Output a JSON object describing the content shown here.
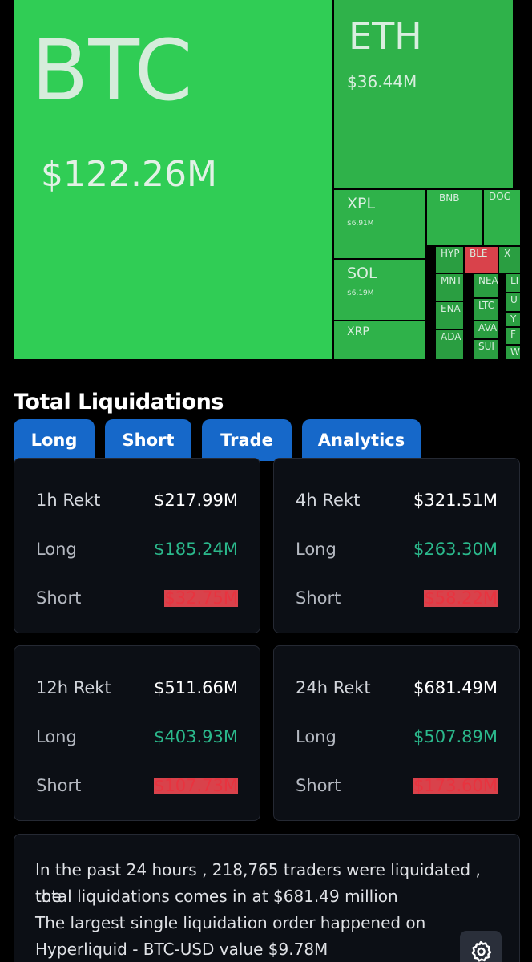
{
  "treemap": {
    "btc": {
      "symbol": "BTC",
      "value": "$122.26M"
    },
    "eth": {
      "symbol": "ETH",
      "value": "$36.44M"
    },
    "xpl": {
      "symbol": "XPL",
      "value": "$6.91M"
    },
    "sol": {
      "symbol": "SOL",
      "value": "$6.19M"
    },
    "xrp": {
      "symbol": "XRP"
    },
    "bnb": {
      "symbol": "BNB"
    },
    "doge": {
      "symbol": "DOG"
    },
    "hype": {
      "symbol": "HYP"
    },
    "ble": {
      "symbol": "BLE"
    },
    "x": {
      "symbol": "X"
    },
    "mnt": {
      "symbol": "MNT"
    },
    "near": {
      "symbol": "NEA"
    },
    "li": {
      "symbol": "LI"
    },
    "ena": {
      "symbol": "ENA"
    },
    "ltc": {
      "symbol": "LTC"
    },
    "u": {
      "symbol": "U"
    },
    "y": {
      "symbol": "Y"
    },
    "ada": {
      "symbol": "ADA"
    },
    "ava": {
      "symbol": "AVA"
    },
    "f": {
      "symbol": "F"
    },
    "sui": {
      "symbol": "SUI"
    },
    "w": {
      "symbol": "W"
    },
    "colors": {
      "primary": "#30cd55",
      "secondary": "#2fb24a",
      "tertiary": "#2a9e41",
      "short": "#d9424b"
    }
  },
  "title": "Total Liquidations",
  "tabs": {
    "long": "Long",
    "short": "Short",
    "trade": "Trade",
    "analytics": "Analytics"
  },
  "cards": {
    "h1": {
      "title": "1h Rekt",
      "total": "$217.99M",
      "long_label": "Long",
      "long": "$185.24M",
      "short_label": "Short",
      "short": "$32.75M"
    },
    "h4": {
      "title": "4h Rekt",
      "total": "$321.51M",
      "long_label": "Long",
      "long": "$263.30M",
      "short_label": "Short",
      "short": "$58.22M"
    },
    "h12": {
      "title": "12h Rekt",
      "total": "$511.66M",
      "long_label": "Long",
      "long": "$403.93M",
      "short_label": "Short",
      "short": "$107.73M"
    },
    "h24": {
      "title": "24h Rekt",
      "total": "$681.49M",
      "long_label": "Long",
      "long": "$507.89M",
      "short_label": "Short",
      "short": "$173.60M"
    }
  },
  "summary": {
    "line1": "In the past 24 hours , 218,765 traders were liquidated , the",
    "line2": "total liquidations comes in at $681.49 million",
    "line3": "The largest single liquidation order happened on",
    "line4": "Hyperliquid - BTC-USD value $9.78M"
  },
  "accent_color": "#1668c9",
  "long_color": "#2bb98c",
  "short_color": "#e8333f"
}
